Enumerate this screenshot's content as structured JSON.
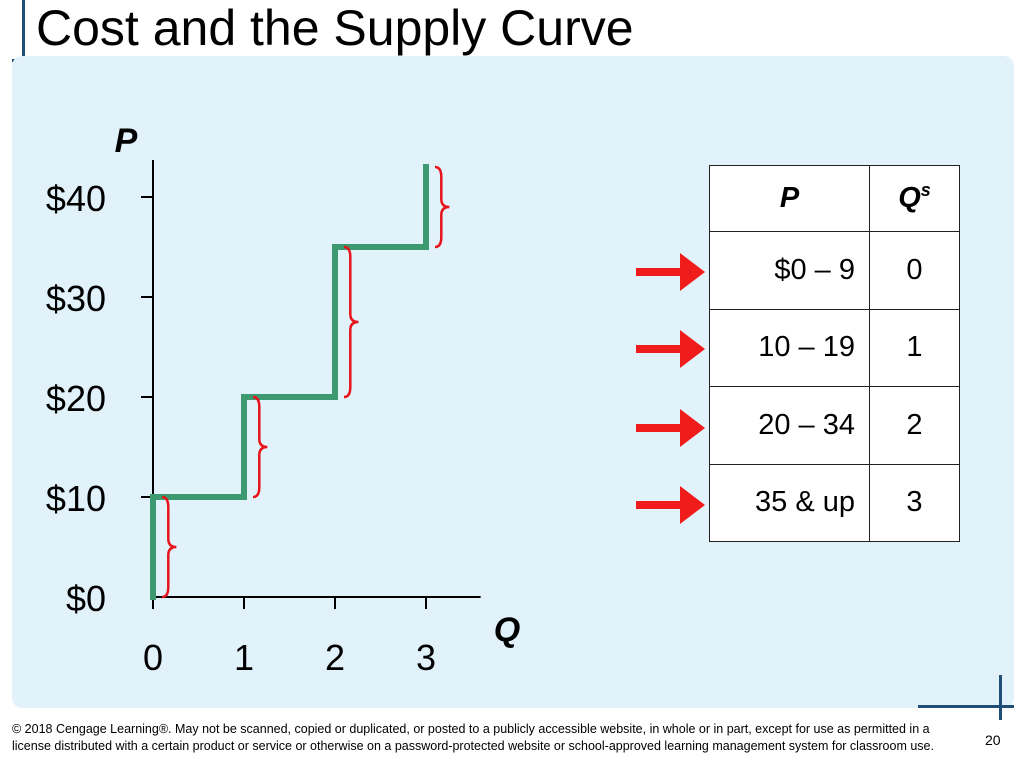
{
  "slide": {
    "title": "Cost and the Supply Curve",
    "footer": "© 2018 Cengage Learning®. May not be scanned, copied or duplicated, or posted to a publicly accessible website, in whole or in part, except for use as permitted in a license distributed with a certain product or service or otherwise on a password-protected website or school-approved learning management system for classroom use.",
    "page_number": "20"
  },
  "colors": {
    "panel_background": "#e1f2fb",
    "curve": "#3d9970",
    "brace": "#e8141c",
    "arrow": "#f01c1c",
    "accent": "#1f4e79"
  },
  "chart_data": {
    "type": "line",
    "step": true,
    "y_axis_label": "P",
    "x_axis_label": "Q",
    "x_ticks": [
      "0",
      "1",
      "2",
      "3"
    ],
    "y_ticks": [
      "$0",
      "$10",
      "$20",
      "$30",
      "$40"
    ],
    "xlim": [
      0,
      3.6
    ],
    "ylim": [
      0,
      43
    ],
    "series": [
      {
        "x": [
          0,
          0,
          1,
          1,
          2,
          2,
          3,
          3
        ],
        "y": [
          0,
          10,
          10,
          20,
          20,
          35,
          35,
          43
        ]
      }
    ],
    "braces": [
      {
        "x": 0,
        "y_from": 0,
        "y_to": 10
      },
      {
        "x": 1,
        "y_from": 10,
        "y_to": 20
      },
      {
        "x": 2,
        "y_from": 20,
        "y_to": 35
      },
      {
        "x": 3,
        "y_from": 35,
        "y_to": 43
      }
    ]
  },
  "table": {
    "headers": {
      "p": "P",
      "q": "Q",
      "q_sup": "s"
    },
    "rows": [
      {
        "p": "$0 – 9",
        "qs": "0"
      },
      {
        "p": "10 – 19",
        "qs": "1"
      },
      {
        "p": "20 – 34",
        "qs": "2"
      },
      {
        "p": "35 & up",
        "qs": "3"
      }
    ]
  }
}
